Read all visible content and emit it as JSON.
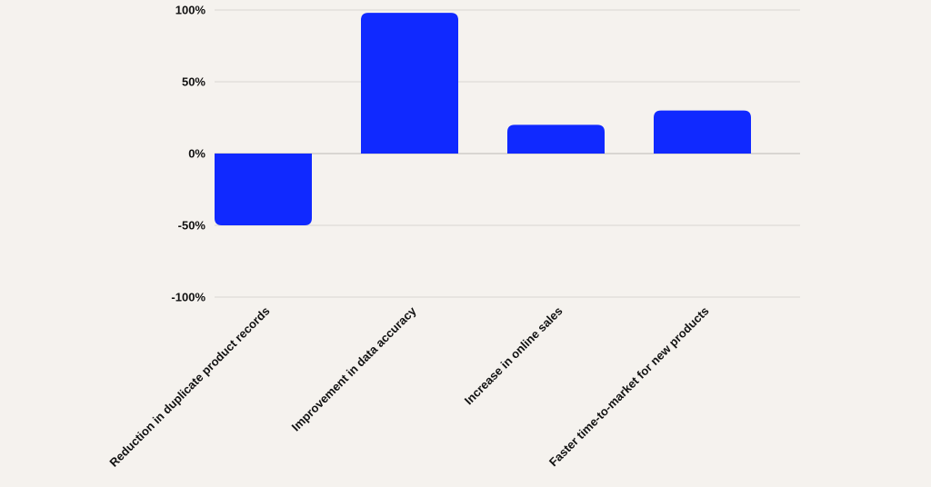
{
  "chart_data": {
    "type": "bar",
    "categories": [
      "Reduction in duplicate product records",
      "Improvement in data accuracy",
      "Increase in online sales",
      "Faster time-to-market for new products"
    ],
    "values": [
      -50,
      98,
      20,
      30
    ],
    "ylim": [
      -100,
      100
    ],
    "yticks": [
      100,
      50,
      0,
      -50,
      -100
    ],
    "ytick_labels": [
      "100%",
      "50%",
      "0%",
      "-50%",
      "-100%"
    ],
    "grid": true,
    "legend": "none",
    "bar_color": "#1029ff",
    "grid_color": "#d9d6d2",
    "background": "#f5f2ee"
  }
}
